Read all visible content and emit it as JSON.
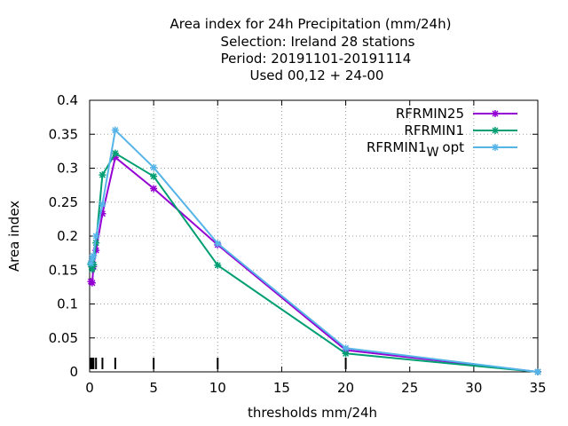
{
  "chart_data": {
    "type": "line",
    "title_lines": [
      "Area index  for 24h Precipitation (mm/24h)",
      "Selection: Ireland      28 stations",
      "Period: 20191101-20191114",
      "Used  00,12  + 24-00"
    ],
    "xlabel": "thresholds mm/24h",
    "ylabel": "Area index",
    "xlim": [
      0,
      35
    ],
    "ylim": [
      0,
      0.4
    ],
    "xticks": [
      0,
      5,
      10,
      15,
      20,
      25,
      30,
      35
    ],
    "yticks": [
      0,
      0.05,
      0.1,
      0.15,
      0.2,
      0.25,
      0.3,
      0.35,
      0.4
    ],
    "grid": true,
    "legend_position": "top-right",
    "threshold_marks": [
      0.1,
      0.2,
      0.3,
      0.5,
      1,
      2,
      5,
      10,
      20
    ],
    "series": [
      {
        "name": "RFRMIN25",
        "color": "#9400d3",
        "points": [
          [
            0.1,
            0.133
          ],
          [
            0.2,
            0.131
          ],
          [
            0.3,
            0.155
          ],
          [
            0.5,
            0.179
          ],
          [
            1,
            0.233
          ],
          [
            2,
            0.316
          ],
          [
            5,
            0.27
          ],
          [
            10,
            0.187
          ],
          [
            20,
            0.032
          ],
          [
            35,
            0.0
          ]
        ]
      },
      {
        "name": "RFRMIN1",
        "color": "#009e73",
        "points": [
          [
            0.1,
            0.158
          ],
          [
            0.2,
            0.151
          ],
          [
            0.3,
            0.158
          ],
          [
            0.5,
            0.19
          ],
          [
            1,
            0.29
          ],
          [
            2,
            0.322
          ],
          [
            5,
            0.288
          ],
          [
            10,
            0.157
          ],
          [
            20,
            0.027
          ],
          [
            35,
            0.0
          ]
        ]
      },
      {
        "name_main": "RFRMIN1",
        "name_sub": "W",
        "name_suffix": "opt",
        "color": "#56b4e9",
        "points": [
          [
            0.1,
            0.16
          ],
          [
            0.2,
            0.168
          ],
          [
            0.3,
            0.171
          ],
          [
            0.5,
            0.2
          ],
          [
            1,
            0.247
          ],
          [
            2,
            0.356
          ],
          [
            5,
            0.301
          ],
          [
            10,
            0.189
          ],
          [
            20,
            0.035
          ],
          [
            35,
            0.0
          ]
        ]
      }
    ]
  }
}
